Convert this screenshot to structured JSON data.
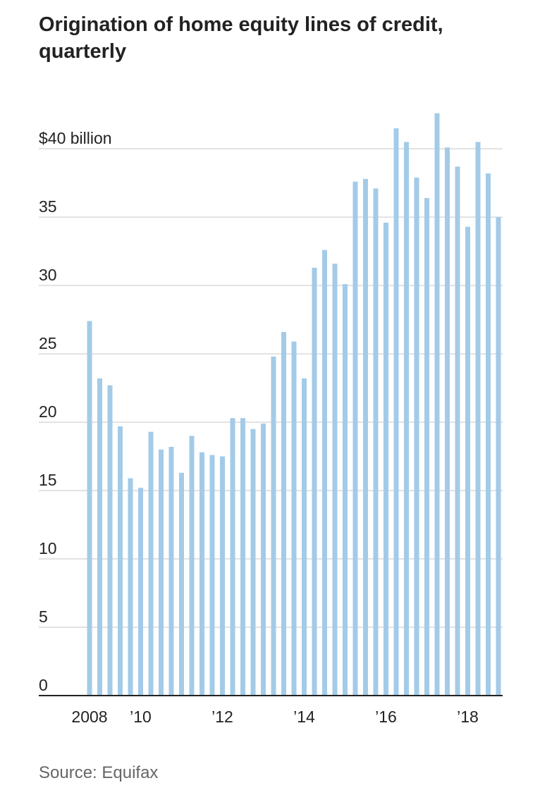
{
  "chart_data": {
    "type": "bar",
    "title": "Origination of home equity lines of credit, quarterly",
    "source": "Source: Equifax",
    "categories": [
      "2008",
      null,
      null,
      null,
      null,
      "’10",
      null,
      null,
      null,
      null,
      null,
      null,
      null,
      "’12",
      null,
      null,
      null,
      null,
      null,
      null,
      null,
      "’14",
      null,
      null,
      null,
      null,
      null,
      null,
      null,
      "’16",
      null,
      null,
      null,
      null,
      null,
      null,
      null,
      "’18",
      null,
      null,
      null
    ],
    "values": [
      27.4,
      23.2,
      22.7,
      19.7,
      15.9,
      15.2,
      19.3,
      18.0,
      18.2,
      16.3,
      19.0,
      17.8,
      17.6,
      17.5,
      20.3,
      20.3,
      19.5,
      19.9,
      24.8,
      26.6,
      25.9,
      23.2,
      31.3,
      32.6,
      31.6,
      30.1,
      37.6,
      37.8,
      37.1,
      34.6,
      41.5,
      40.5,
      37.9,
      36.4,
      42.6,
      40.1,
      38.7,
      34.3,
      40.5,
      38.2,
      35.0
    ],
    "color": "#a3cbe8",
    "ylim": [
      0,
      43
    ],
    "yticks": [
      0,
      5,
      10,
      15,
      20,
      25,
      30,
      35,
      {
        "value": 40,
        "label": "$40 billion"
      }
    ],
    "grid": true
  }
}
